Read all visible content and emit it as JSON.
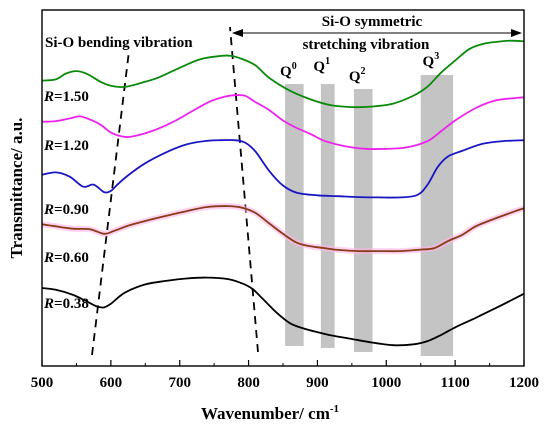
{
  "chart_data": {
    "type": "line",
    "xlabel": "Wavenumber/ cm",
    "xlabel_sup": "-1",
    "ylabel": "Transmittance/ a.u.",
    "xlim": [
      500,
      1200
    ],
    "ylim": [
      0,
      100
    ],
    "xticks": [
      500,
      600,
      700,
      800,
      900,
      1000,
      1100,
      1200
    ],
    "series": [
      {
        "name": "R=0.38",
        "r_symbol": "R",
        "r_value": "=0.38",
        "color": "#000000",
        "x": [
          500,
          520,
          545,
          565,
          580,
          590,
          600,
          620,
          650,
          680,
          710,
          740,
          770,
          790,
          805,
          820,
          840,
          860,
          880,
          900,
          920,
          950,
          980,
          1010,
          1040,
          1060,
          1080,
          1100,
          1130,
          1160,
          1185,
          1200
        ],
        "y": [
          20.8,
          20.2,
          18.5,
          16.3,
          14.6,
          14.3,
          15.5,
          19.2,
          22.0,
          23.2,
          24.0,
          24.3,
          23.8,
          22.4,
          20.6,
          17.3,
          12.7,
          9.0,
          7.2,
          6.0,
          4.9,
          3.7,
          2.5,
          1.6,
          1.9,
          3.0,
          5.1,
          7.6,
          10.8,
          14.2,
          17.1,
          18.9
        ]
      },
      {
        "name": "R=0.60",
        "r_symbol": "R",
        "r_value": "=0.60",
        "color": "#8b3a1a",
        "x": [
          500,
          520,
          545,
          570,
          590,
          605,
          625,
          650,
          680,
          710,
          740,
          770,
          790,
          810,
          830,
          850,
          870,
          890,
          910,
          930,
          960,
          990,
          1020,
          1050,
          1070,
          1090,
          1110,
          1130,
          1160,
          1185,
          1200
        ],
        "y": [
          42.2,
          41.5,
          40.7,
          40.5,
          39.0,
          40.0,
          41.7,
          43.3,
          45.0,
          46.6,
          48.0,
          48.3,
          47.8,
          46.0,
          42.5,
          39.0,
          36.0,
          34.8,
          34.2,
          33.6,
          33.2,
          33.2,
          33.2,
          33.7,
          34.2,
          36.6,
          38.6,
          41.5,
          44.3,
          46.4,
          47.6
        ]
      },
      {
        "name": "R=0.90",
        "r_symbol": "R",
        "r_value": "=0.90",
        "color": "#1a16c4",
        "x": [
          500,
          520,
          540,
          560,
          575,
          590,
          600,
          610,
          625,
          650,
          680,
          710,
          740,
          760,
          780,
          795,
          810,
          830,
          850,
          870,
          900,
          930,
          960,
          990,
          1020,
          1045,
          1060,
          1075,
          1090,
          1110,
          1140,
          1170,
          1200
        ],
        "y": [
          58.8,
          59.6,
          58.2,
          54.8,
          55.5,
          53.0,
          53.4,
          55.6,
          58.6,
          62.7,
          66.3,
          69.0,
          70.2,
          70.4,
          70.4,
          69.6,
          66.6,
          60.1,
          55.2,
          52.8,
          51.9,
          51.6,
          51.3,
          51.2,
          51.2,
          52.0,
          55.5,
          61.5,
          65.0,
          66.8,
          69.2,
          70.1,
          70.4
        ]
      },
      {
        "name": "R=1.20",
        "r_symbol": "R",
        "r_value": "=1.20",
        "color": "#ee22ee",
        "x": [
          500,
          520,
          540,
          555,
          570,
          585,
          600,
          615,
          630,
          660,
          690,
          720,
          745,
          765,
          780,
          795,
          810,
          830,
          850,
          870,
          890,
          910,
          940,
          970,
          1000,
          1030,
          1060,
          1080,
          1100,
          1130,
          1160,
          1200
        ],
        "y": [
          76.6,
          76.8,
          77.7,
          78.4,
          77.3,
          75.6,
          73.0,
          71.7,
          71.6,
          73.5,
          76.5,
          80.4,
          83.5,
          85.0,
          85.5,
          85.3,
          83.2,
          80.5,
          77.0,
          74.5,
          72.5,
          70.2,
          68.4,
          67.5,
          67.5,
          68.0,
          70.1,
          73.5,
          77.0,
          81.2,
          83.8,
          84.8
        ]
      },
      {
        "name": "R=1.50",
        "r_symbol": "R",
        "r_value": "=1.50",
        "color": "#0a8a0a",
        "x": [
          500,
          520,
          535,
          550,
          565,
          585,
          600,
          620,
          645,
          670,
          700,
          730,
          760,
          775,
          790,
          810,
          830,
          860,
          890,
          920,
          950,
          980,
          1010,
          1040,
          1060,
          1080,
          1100,
          1120,
          1140,
          1160,
          1180,
          1200
        ],
        "y": [
          90.4,
          90.8,
          92.8,
          93.6,
          92.7,
          90.0,
          88.7,
          88.3,
          89.7,
          91.5,
          94.7,
          97.6,
          98.7,
          98.7,
          97.7,
          95.5,
          91.3,
          87.0,
          84.1,
          82.1,
          81.5,
          81.7,
          82.7,
          85.4,
          88.4,
          93.2,
          97.1,
          100.9,
          102.7,
          103.4,
          103.8,
          103.6
        ]
      }
    ],
    "annotations": {
      "bending_label": "Si-O bending vibration",
      "stretching_line1": "Si-O symmetric",
      "stretching_line2": "stretching vibration"
    },
    "q_bands": [
      {
        "label": "Q",
        "sup": "0",
        "x_from": 853,
        "x_to": 880
      },
      {
        "label": "Q",
        "sup": "1",
        "x_from": 905,
        "x_to": 925
      },
      {
        "label": "Q",
        "sup": "2",
        "x_from": 953,
        "x_to": 980
      },
      {
        "label": "Q",
        "sup": "3",
        "x_from": 1050,
        "x_to": 1097
      }
    ],
    "band_color": "#c4c4c4"
  }
}
